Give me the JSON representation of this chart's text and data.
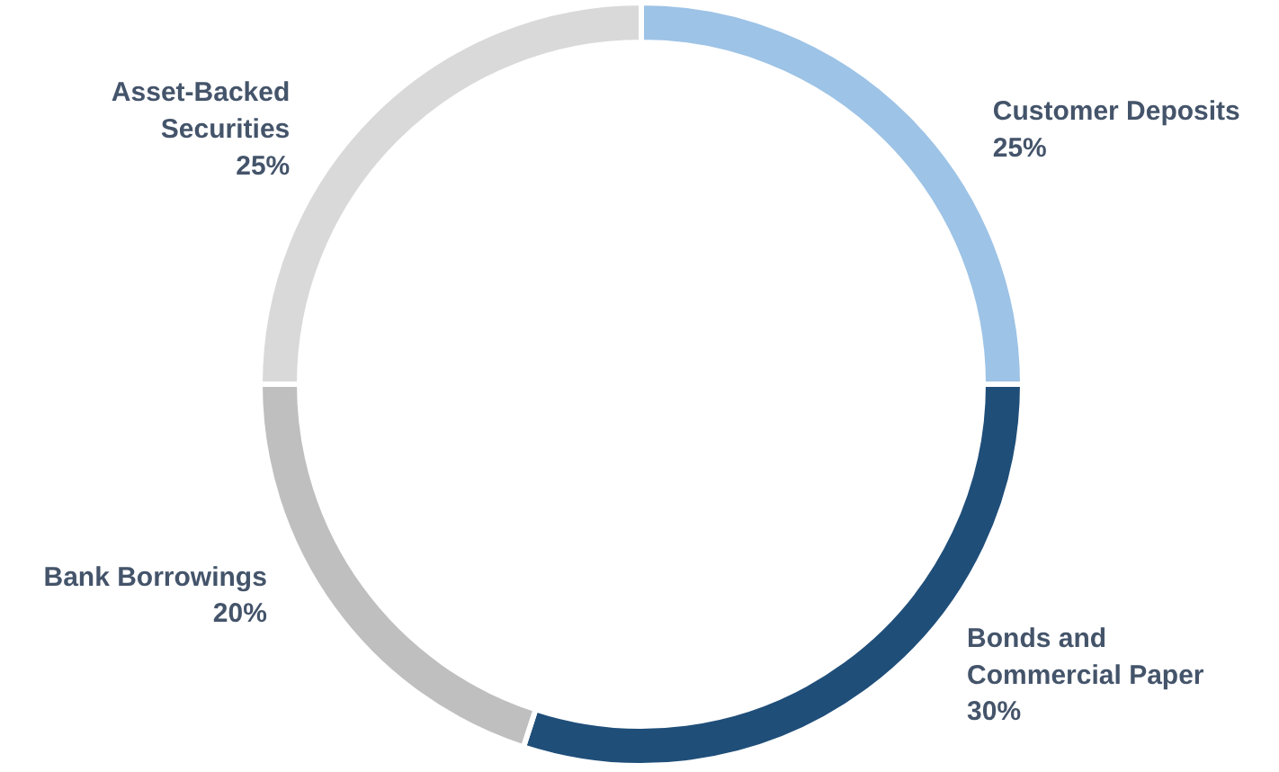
{
  "chart_data": {
    "type": "donut",
    "categories": [
      "Customer Deposits",
      "Bonds and Commercial Paper",
      "Bank Borrowings",
      "Asset-Backed Securities"
    ],
    "values": [
      25,
      30,
      20,
      25
    ],
    "colors": [
      "#9dc3e6",
      "#1f4e79",
      "#bfbfbf",
      "#d9d9d9"
    ],
    "value_labels": [
      "25%",
      "30%",
      "20%",
      "25%"
    ]
  }
}
